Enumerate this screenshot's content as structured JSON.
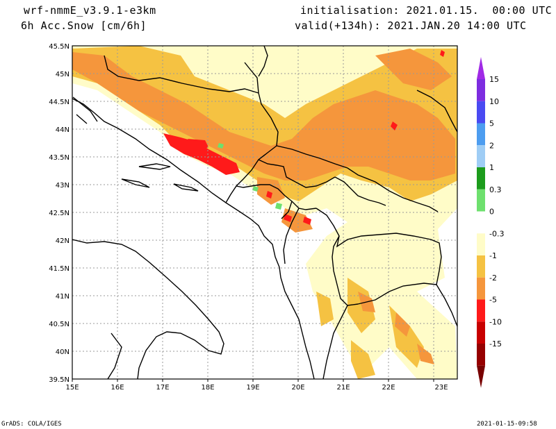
{
  "header": {
    "model": "wrf-nmmE_v3.9.1-e3km",
    "field": "6h Acc.Snow [cm/6h]",
    "init": "initialisation: 2021.01.15.  00:00 UTC",
    "valid": "valid(+134h): 2021.JAN.20 14:00 UTC"
  },
  "footer": {
    "left": "GrADS: COLA/IGES",
    "right": "2021-01-15-09:58"
  },
  "axes": {
    "lon_labels": [
      "15E",
      "16E",
      "17E",
      "18E",
      "19E",
      "20E",
      "21E",
      "22E",
      "23E"
    ],
    "lat_labels": [
      "45.5N",
      "45N",
      "44.5N",
      "44N",
      "43.5N",
      "43N",
      "42.5N",
      "42N",
      "41.5N",
      "41N",
      "40.5N",
      "40N",
      "39.5N"
    ]
  },
  "colorbar": {
    "labels": [
      "15",
      "10",
      "5",
      "2",
      "1",
      "0.3",
      "0",
      "-0.3",
      "-1",
      "-2",
      "-5",
      "-10",
      "-15"
    ],
    "colors": [
      "#7d2de0",
      "#4a4af2",
      "#4d9df0",
      "#9fcdf5",
      "#1c9c1c",
      "#6ee06e",
      "#ffffff",
      "#fffcc8",
      "#f5c242",
      "#f5963c",
      "#ff1a1a",
      "#c80000",
      "#960000"
    ],
    "top_arrow": "#a02ae6",
    "bottom_arrow": "#780000"
  },
  "colors": {
    "land_bg": "#ffffff",
    "border": "#000000",
    "grid": "#999999"
  }
}
